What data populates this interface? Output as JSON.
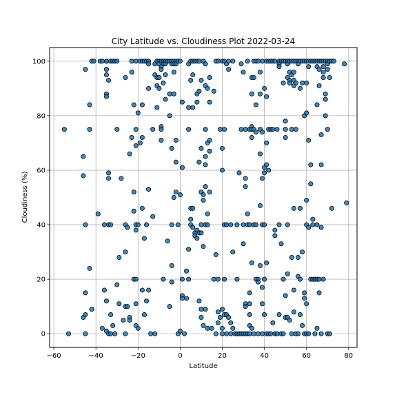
{
  "chart_data": {
    "type": "scatter",
    "title": "City Latitude vs. Cloudiness Plot 2022-03-24",
    "xlabel": "Latitude",
    "ylabel": "Cloudiness (%)",
    "xlim": [
      -62,
      84
    ],
    "ylim": [
      -5,
      105
    ],
    "xticks": [
      -60,
      -40,
      -20,
      0,
      20,
      40,
      60,
      80
    ],
    "yticks": [
      0,
      20,
      40,
      60,
      80,
      100
    ],
    "grid": true,
    "marker_color": "#1f77b4",
    "marker_edge_color": "#000000",
    "points": [
      [
        -55,
        75
      ],
      [
        -53,
        0
      ],
      [
        -46,
        58
      ],
      [
        -46,
        65
      ],
      [
        -46,
        6
      ],
      [
        -45,
        97
      ],
      [
        -45,
        40
      ],
      [
        -45,
        15
      ],
      [
        -45,
        7
      ],
      [
        -45,
        0
      ],
      [
        -43,
        84
      ],
      [
        -43,
        75
      ],
      [
        -43,
        24
      ],
      [
        -42,
        100
      ],
      [
        -41,
        100
      ],
      [
        -42,
        9
      ],
      [
        -39,
        44
      ],
      [
        -38,
        100
      ],
      [
        -37,
        100
      ],
      [
        -37,
        2
      ],
      [
        -36,
        40
      ],
      [
        -36,
        16
      ],
      [
        -35,
        100
      ],
      [
        -35,
        100
      ],
      [
        -35,
        97
      ],
      [
        -35,
        95
      ],
      [
        -35,
        88
      ],
      [
        -35,
        87
      ],
      [
        -35,
        12
      ],
      [
        -35,
        1
      ],
      [
        -34,
        93
      ],
      [
        -34,
        59
      ],
      [
        -34,
        57
      ],
      [
        -34,
        40
      ],
      [
        -34,
        0
      ],
      [
        -33,
        100
      ],
      [
        -33,
        7
      ],
      [
        -33,
        0
      ],
      [
        -33,
        40
      ],
      [
        -32,
        100
      ],
      [
        -32,
        3
      ],
      [
        -31,
        100
      ],
      [
        -31,
        0
      ],
      [
        -30,
        100
      ],
      [
        -30,
        75
      ],
      [
        -30,
        18
      ],
      [
        -29,
        28
      ],
      [
        -29,
        11
      ],
      [
        -28,
        57
      ],
      [
        -27,
        5
      ],
      [
        -26,
        94
      ],
      [
        -26,
        40
      ],
      [
        -26,
        30
      ],
      [
        -26,
        10
      ],
      [
        -26,
        0
      ],
      [
        -25,
        39
      ],
      [
        -25,
        10
      ],
      [
        -24,
        66
      ],
      [
        -24,
        6
      ],
      [
        -24,
        5
      ],
      [
        -23,
        100
      ],
      [
        -23,
        96
      ],
      [
        -23,
        72
      ],
      [
        -22,
        84
      ],
      [
        -22,
        52
      ],
      [
        -22,
        45
      ],
      [
        -22,
        20
      ],
      [
        -21,
        100
      ],
      [
        -21,
        75
      ],
      [
        -21,
        69
      ],
      [
        -21,
        40
      ],
      [
        -21,
        38
      ],
      [
        -21,
        20
      ],
      [
        -21,
        11
      ],
      [
        -21,
        3
      ],
      [
        -20,
        81
      ],
      [
        -20,
        40
      ],
      [
        -20,
        2
      ],
      [
        -19,
        100
      ],
      [
        -19,
        70
      ],
      [
        -18,
        100
      ],
      [
        -18,
        84
      ],
      [
        -18,
        72
      ],
      [
        -18,
        46
      ],
      [
        -18,
        16
      ],
      [
        -17,
        100
      ],
      [
        -17,
        35
      ],
      [
        -17,
        7
      ],
      [
        -16,
        100
      ],
      [
        -16,
        40
      ],
      [
        -16,
        12
      ],
      [
        -15,
        100
      ],
      [
        -15,
        99
      ],
      [
        -15,
        90
      ],
      [
        -15,
        53
      ],
      [
        -15,
        16
      ],
      [
        -14,
        0
      ],
      [
        -13,
        75
      ],
      [
        -13,
        43
      ],
      [
        -12,
        99
      ],
      [
        -12,
        95
      ],
      [
        -12,
        0
      ],
      [
        -11,
        100
      ],
      [
        -11,
        94
      ],
      [
        -11,
        91
      ],
      [
        -11,
        83
      ],
      [
        -10,
        100
      ],
      [
        -10,
        99
      ],
      [
        -10,
        94
      ],
      [
        -10,
        90
      ],
      [
        -9,
        100
      ],
      [
        -9,
        98
      ],
      [
        -9,
        97
      ],
      [
        -9,
        76
      ],
      [
        -9,
        75
      ],
      [
        -9,
        71
      ],
      [
        -8,
        100
      ],
      [
        -8,
        99
      ],
      [
        -8,
        92
      ],
      [
        -8,
        20
      ],
      [
        -7,
        100
      ],
      [
        -7,
        99
      ],
      [
        -7,
        95
      ],
      [
        -7,
        86
      ],
      [
        -6,
        100
      ],
      [
        -6,
        34
      ],
      [
        -5,
        100
      ],
      [
        -5,
        88
      ],
      [
        -5,
        80
      ],
      [
        -5,
        10
      ],
      [
        -4,
        100
      ],
      [
        -4,
        99
      ],
      [
        -4,
        68
      ],
      [
        -4,
        40
      ],
      [
        -4,
        25
      ],
      [
        -4,
        19
      ],
      [
        -3,
        100
      ],
      [
        -3,
        99
      ],
      [
        -3,
        96
      ],
      [
        -3,
        88
      ],
      [
        -3,
        50
      ],
      [
        -2,
        100
      ],
      [
        -2,
        99
      ],
      [
        -2,
        71
      ],
      [
        -2,
        63
      ],
      [
        -2,
        52
      ],
      [
        -1,
        100
      ],
      [
        -1,
        40
      ],
      [
        -1,
        0
      ],
      [
        0,
        100
      ],
      [
        0,
        51
      ],
      [
        0,
        1
      ],
      [
        1,
        85
      ],
      [
        1,
        61
      ],
      [
        1,
        20
      ],
      [
        1,
        14
      ],
      [
        1,
        13
      ],
      [
        2,
        0
      ],
      [
        3,
        23
      ],
      [
        3,
        13
      ],
      [
        4,
        99
      ],
      [
        4,
        83
      ],
      [
        4,
        75
      ],
      [
        4,
        31
      ],
      [
        4,
        20
      ],
      [
        5,
        100
      ],
      [
        5,
        93
      ],
      [
        5,
        46
      ],
      [
        5,
        42
      ],
      [
        5,
        40
      ],
      [
        6,
        100
      ],
      [
        6,
        95
      ],
      [
        6,
        83
      ],
      [
        6,
        46
      ],
      [
        6,
        39
      ],
      [
        7,
        100
      ],
      [
        7,
        37
      ],
      [
        7,
        36
      ],
      [
        8,
        100
      ],
      [
        8,
        85
      ],
      [
        8,
        88
      ],
      [
        8,
        38
      ],
      [
        8,
        35
      ],
      [
        9,
        100
      ],
      [
        9,
        89
      ],
      [
        9,
        63
      ],
      [
        9,
        37
      ],
      [
        9,
        12
      ],
      [
        10,
        93
      ],
      [
        10,
        68
      ],
      [
        10,
        52
      ],
      [
        10,
        40
      ],
      [
        10,
        37
      ],
      [
        10,
        9
      ],
      [
        10,
        6
      ],
      [
        11,
        100
      ],
      [
        11,
        51
      ],
      [
        11,
        49
      ],
      [
        11,
        32
      ],
      [
        11,
        3
      ],
      [
        12,
        99
      ],
      [
        12,
        91
      ],
      [
        12,
        75
      ],
      [
        12,
        65
      ],
      [
        12,
        62
      ],
      [
        12,
        54
      ],
      [
        12,
        40
      ],
      [
        12,
        9
      ],
      [
        13,
        90
      ],
      [
        13,
        70
      ],
      [
        13,
        44
      ],
      [
        13,
        40
      ],
      [
        13,
        2
      ],
      [
        14,
        94
      ],
      [
        14,
        85
      ],
      [
        14,
        71
      ],
      [
        14,
        67
      ],
      [
        14,
        52
      ],
      [
        15,
        2
      ],
      [
        16,
        89
      ],
      [
        16,
        20
      ],
      [
        17,
        100
      ],
      [
        17,
        29
      ],
      [
        17,
        0
      ],
      [
        18,
        100
      ],
      [
        18,
        20
      ],
      [
        18,
        8
      ],
      [
        18,
        4
      ],
      [
        19,
        75
      ],
      [
        19,
        6
      ],
      [
        20,
        100
      ],
      [
        20,
        68
      ],
      [
        20,
        60
      ],
      [
        20,
        9
      ],
      [
        20,
        2
      ],
      [
        20,
        0
      ],
      [
        21,
        100
      ],
      [
        21,
        75
      ],
      [
        21,
        40
      ],
      [
        21,
        20
      ],
      [
        21,
        7
      ],
      [
        22,
        99
      ],
      [
        22,
        40
      ],
      [
        22,
        7
      ],
      [
        22,
        0
      ],
      [
        23,
        100
      ],
      [
        23,
        97
      ],
      [
        23,
        6
      ],
      [
        24,
        4
      ],
      [
        24,
        40
      ],
      [
        24,
        0
      ],
      [
        25,
        100
      ],
      [
        25,
        30
      ],
      [
        25,
        2
      ],
      [
        26,
        0
      ],
      [
        27,
        40
      ],
      [
        27,
        20
      ],
      [
        27,
        0
      ],
      [
        28,
        59
      ],
      [
        28,
        0
      ],
      [
        29,
        99
      ],
      [
        29,
        75
      ],
      [
        29,
        0
      ],
      [
        30,
        96
      ],
      [
        30,
        40
      ],
      [
        30,
        33
      ],
      [
        30,
        0
      ],
      [
        31,
        75
      ],
      [
        31,
        57
      ],
      [
        31,
        54
      ],
      [
        31,
        11
      ],
      [
        31,
        10
      ],
      [
        31,
        0
      ],
      [
        32,
        100
      ],
      [
        32,
        44
      ],
      [
        32,
        40
      ],
      [
        32,
        0
      ],
      [
        33,
        75
      ],
      [
        33,
        40
      ],
      [
        33,
        15
      ],
      [
        33,
        11
      ],
      [
        33,
        7
      ],
      [
        33,
        3
      ],
      [
        33,
        0
      ],
      [
        34,
        94
      ],
      [
        34,
        88
      ],
      [
        34,
        76
      ],
      [
        34,
        75
      ],
      [
        34,
        72
      ],
      [
        34,
        26
      ],
      [
        34,
        2
      ],
      [
        35,
        100
      ],
      [
        35,
        94
      ],
      [
        35,
        75
      ],
      [
        35,
        40
      ],
      [
        35,
        0
      ],
      [
        36,
        100
      ],
      [
        36,
        84
      ],
      [
        36,
        74
      ],
      [
        36,
        40
      ],
      [
        36,
        20
      ],
      [
        37,
        100
      ],
      [
        37,
        20
      ],
      [
        37,
        19
      ],
      [
        37,
        0
      ],
      [
        38,
        96
      ],
      [
        38,
        88
      ],
      [
        38,
        75
      ],
      [
        38,
        66
      ],
      [
        38,
        47
      ],
      [
        38,
        25
      ],
      [
        39,
        100
      ],
      [
        39,
        74
      ],
      [
        39,
        57
      ],
      [
        39,
        40
      ],
      [
        39,
        17
      ],
      [
        39,
        11
      ],
      [
        39,
        0
      ],
      [
        40,
        90
      ],
      [
        40,
        61
      ],
      [
        40,
        59
      ],
      [
        40,
        40
      ],
      [
        40,
        20
      ],
      [
        40,
        7
      ],
      [
        41,
        100
      ],
      [
        41,
        87
      ],
      [
        41,
        70
      ],
      [
        41,
        62
      ],
      [
        41,
        26
      ],
      [
        41,
        0
      ],
      [
        42,
        100
      ],
      [
        42,
        75
      ],
      [
        42,
        60
      ],
      [
        42,
        0
      ],
      [
        43,
        100
      ],
      [
        43,
        75
      ],
      [
        43,
        0
      ],
      [
        44,
        100
      ],
      [
        44,
        75
      ],
      [
        44,
        4
      ],
      [
        45,
        100
      ],
      [
        45,
        38
      ],
      [
        45,
        36
      ],
      [
        45,
        0
      ],
      [
        46,
        75
      ],
      [
        46,
        0
      ],
      [
        47,
        100
      ],
      [
        47,
        99
      ],
      [
        47,
        98
      ],
      [
        47,
        40
      ],
      [
        47,
        7
      ],
      [
        48,
        100
      ],
      [
        48,
        33
      ],
      [
        48,
        0
      ],
      [
        49,
        100
      ],
      [
        49,
        92
      ],
      [
        49,
        20
      ],
      [
        49,
        0
      ],
      [
        50,
        100
      ],
      [
        50,
        78
      ],
      [
        50,
        75
      ],
      [
        50,
        72
      ],
      [
        50,
        14
      ],
      [
        50,
        6
      ],
      [
        51,
        100
      ],
      [
        51,
        99
      ],
      [
        51,
        94
      ],
      [
        51,
        40
      ],
      [
        51,
        22
      ],
      [
        51,
        6
      ],
      [
        52,
        100
      ],
      [
        52,
        96
      ],
      [
        52,
        93
      ],
      [
        52,
        92
      ],
      [
        52,
        5
      ],
      [
        53,
        100
      ],
      [
        53,
        95
      ],
      [
        53,
        75
      ],
      [
        53,
        28
      ],
      [
        53,
        0
      ],
      [
        54,
        100
      ],
      [
        54,
        96
      ],
      [
        54,
        93
      ],
      [
        54,
        91
      ],
      [
        54,
        46
      ],
      [
        54,
        16
      ],
      [
        54,
        8
      ],
      [
        55,
        100
      ],
      [
        55,
        92
      ],
      [
        55,
        75
      ],
      [
        55,
        0
      ],
      [
        56,
        100
      ],
      [
        56,
        99
      ],
      [
        56,
        28
      ],
      [
        56,
        21
      ],
      [
        56,
        0
      ],
      [
        57,
        100
      ],
      [
        57,
        90
      ],
      [
        57,
        46
      ],
      [
        57,
        20
      ],
      [
        57,
        7
      ],
      [
        58,
        100
      ],
      [
        58,
        92
      ],
      [
        58,
        30
      ],
      [
        58,
        3
      ],
      [
        59,
        100
      ],
      [
        59,
        80
      ],
      [
        59,
        15
      ],
      [
        59,
        13
      ],
      [
        59,
        0
      ],
      [
        60,
        100
      ],
      [
        60,
        92
      ],
      [
        60,
        81
      ],
      [
        60,
        49
      ],
      [
        60,
        40
      ],
      [
        60,
        11
      ],
      [
        60,
        0
      ],
      [
        61,
        100
      ],
      [
        61,
        98
      ],
      [
        61,
        71
      ],
      [
        61,
        39
      ],
      [
        61,
        0
      ],
      [
        62,
        100
      ],
      [
        62,
        62
      ],
      [
        62,
        55
      ],
      [
        62,
        20
      ],
      [
        63,
        100
      ],
      [
        63,
        42
      ],
      [
        63,
        40
      ],
      [
        63,
        20
      ],
      [
        64,
        100
      ],
      [
        64,
        20
      ],
      [
        64,
        0
      ],
      [
        65,
        100
      ],
      [
        65,
        98
      ],
      [
        65,
        84
      ],
      [
        65,
        40
      ],
      [
        65,
        20
      ],
      [
        65,
        2
      ],
      [
        66,
        100
      ],
      [
        66,
        97
      ],
      [
        66,
        91
      ],
      [
        66,
        20
      ],
      [
        66,
        15
      ],
      [
        67,
        100
      ],
      [
        67,
        73
      ],
      [
        67,
        62
      ],
      [
        67,
        39
      ],
      [
        67,
        0
      ],
      [
        68,
        100
      ],
      [
        68,
        98
      ],
      [
        68,
        96
      ],
      [
        68,
        94
      ],
      [
        68,
        20
      ],
      [
        69,
        100
      ],
      [
        69,
        88
      ],
      [
        69,
        86
      ],
      [
        69,
        80
      ],
      [
        70,
        100
      ],
      [
        70,
        99
      ],
      [
        70,
        97
      ],
      [
        70,
        75
      ],
      [
        70,
        0
      ],
      [
        71,
        100
      ],
      [
        71,
        94
      ],
      [
        71,
        0
      ],
      [
        72,
        100
      ],
      [
        72,
        46
      ],
      [
        73,
        100
      ],
      [
        78,
        99
      ],
      [
        79,
        48
      ]
    ]
  }
}
